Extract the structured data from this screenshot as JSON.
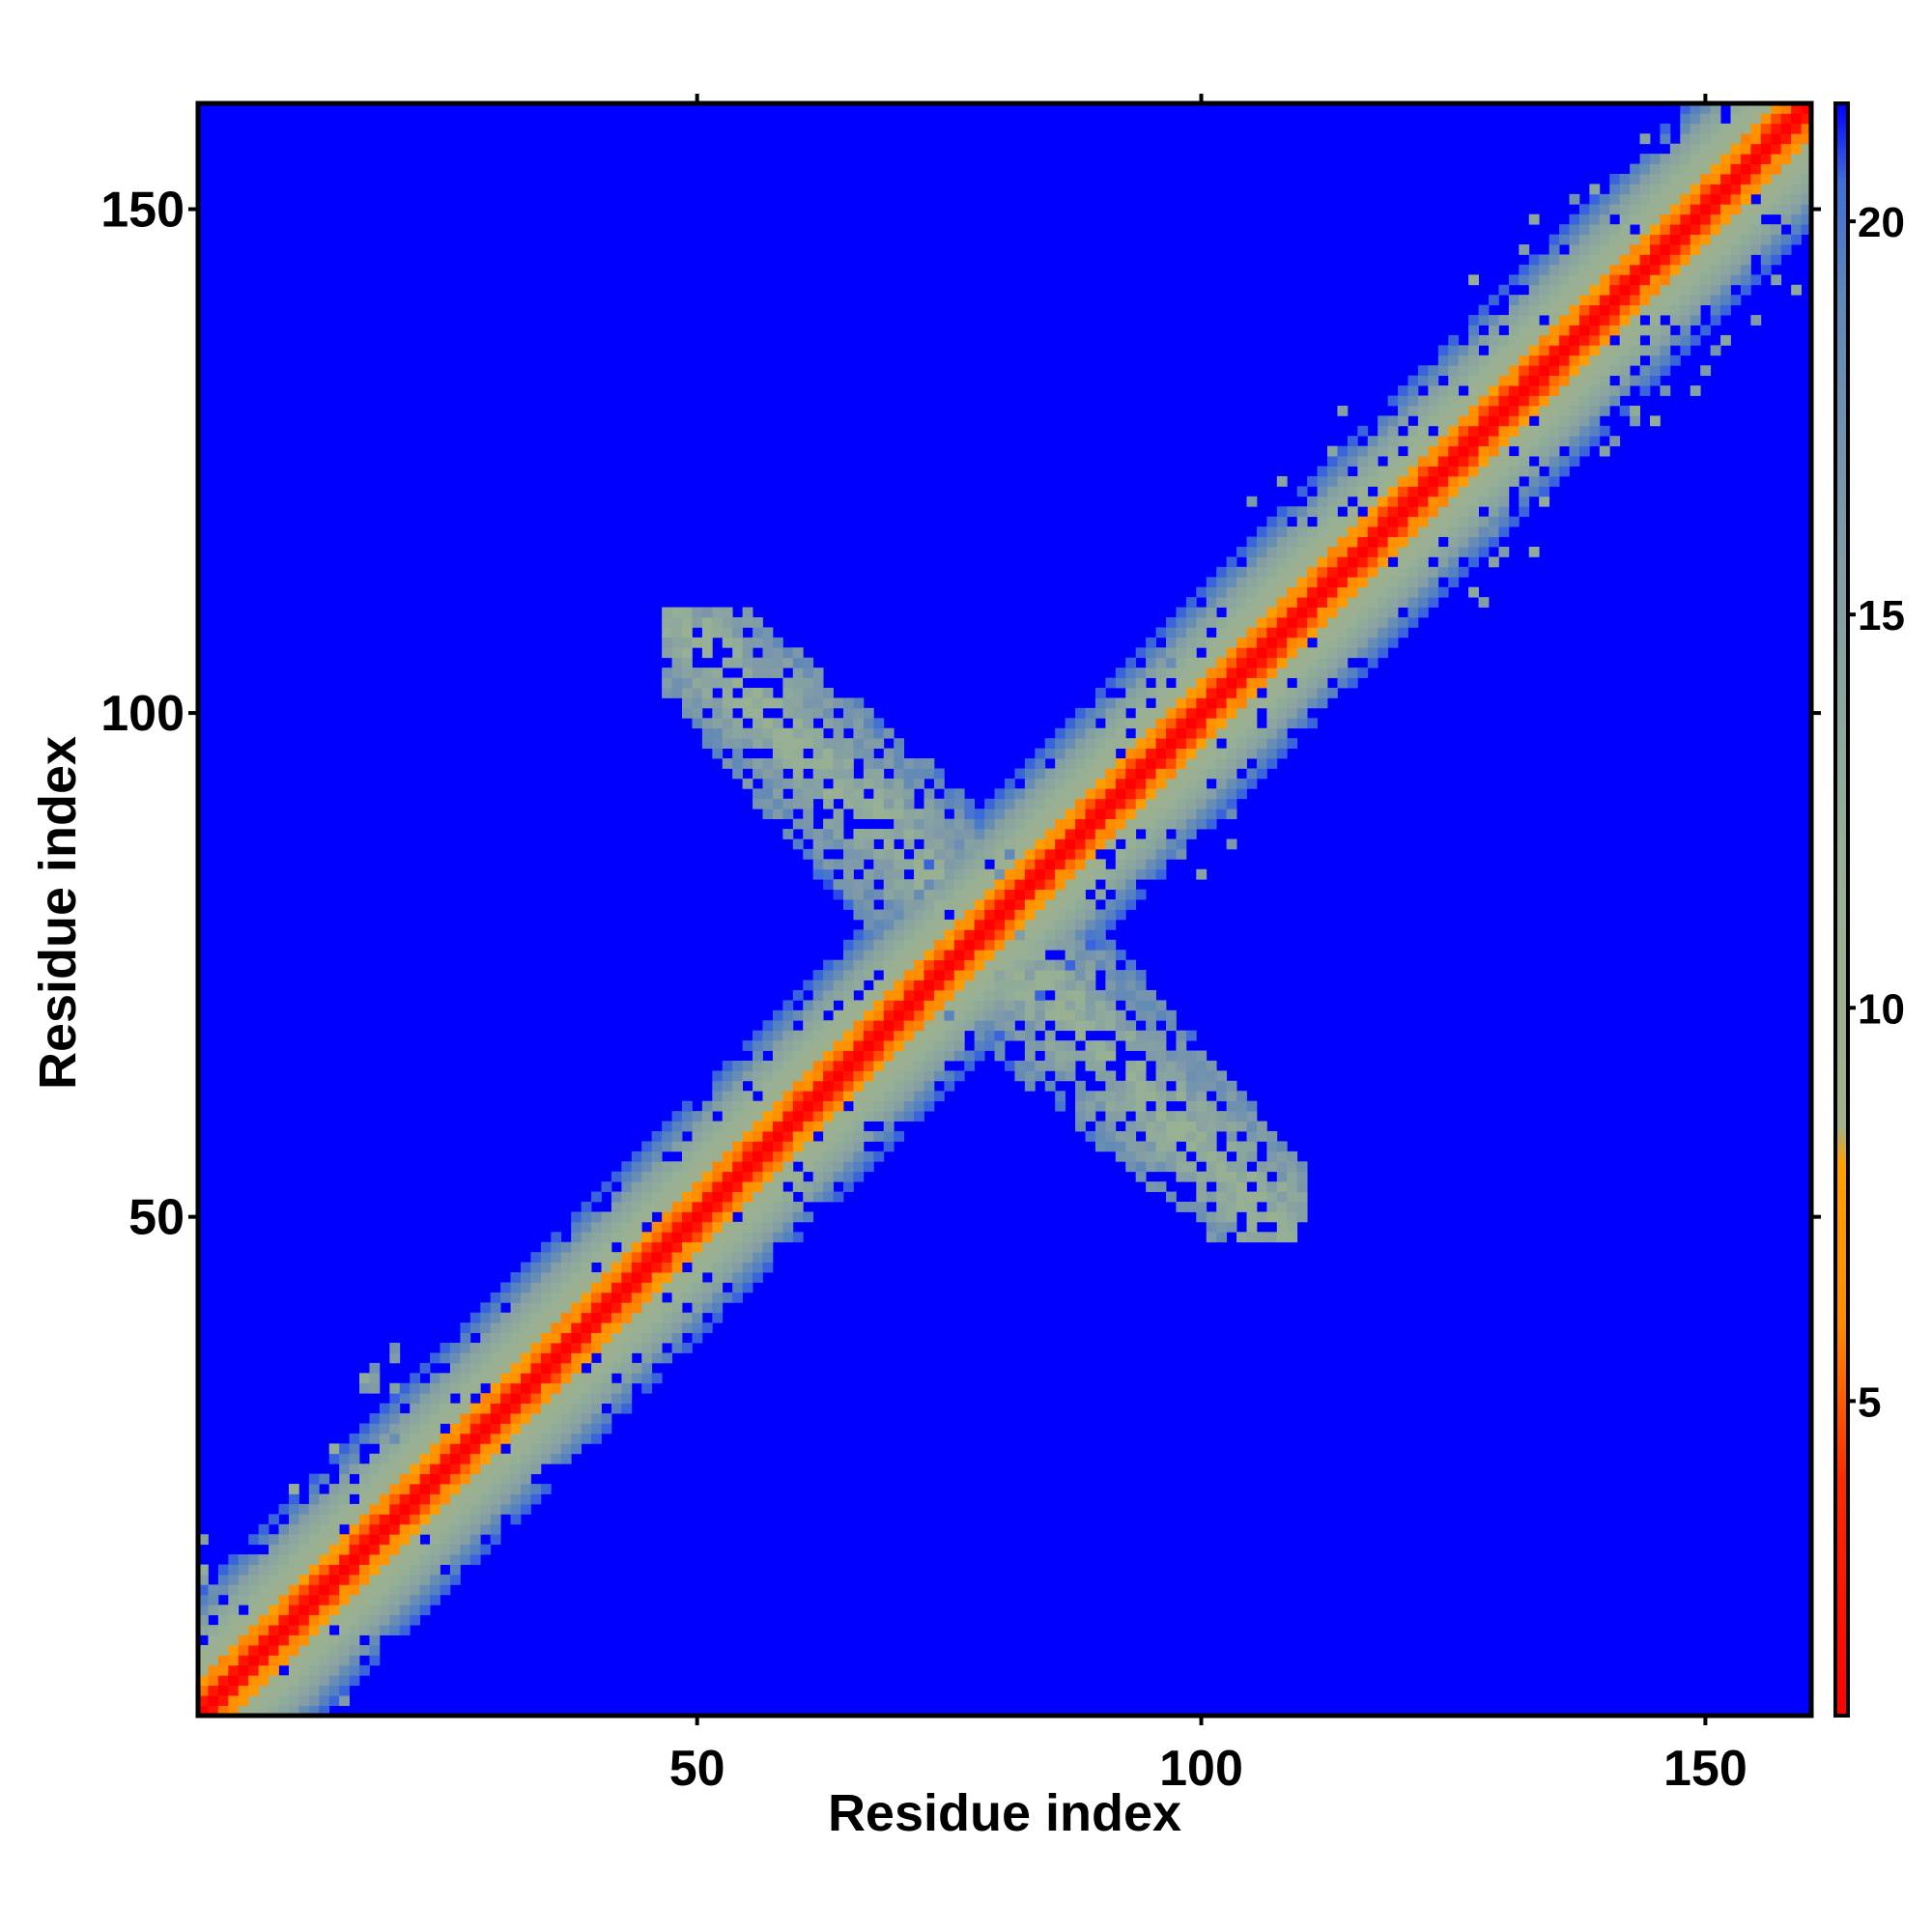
{
  "chart_data": {
    "type": "heatmap",
    "title": "",
    "xlabel": "Residue index",
    "ylabel": "Residue index",
    "x_range": [
      1,
      160
    ],
    "y_range": [
      1,
      160
    ],
    "x_ticks": [
      50,
      100,
      150
    ],
    "y_ticks": [
      50,
      100,
      150
    ],
    "colorbar": {
      "range": [
        1,
        21.5
      ],
      "ticks": [
        5,
        10,
        15,
        20
      ],
      "stops": [
        {
          "value": 1,
          "color": "#ff0000"
        },
        {
          "value": 4,
          "color": "#ff2a00"
        },
        {
          "value": 6,
          "color": "#ff8c00"
        },
        {
          "value": 8,
          "color": "#ffa000"
        },
        {
          "value": 8.5,
          "color": "#a0b08a"
        },
        {
          "value": 12,
          "color": "#96b096"
        },
        {
          "value": 16,
          "color": "#7f9aa8"
        },
        {
          "value": 19,
          "color": "#5f88b8"
        },
        {
          "value": 20.5,
          "color": "#3f6fd8"
        },
        {
          "value": 21.5,
          "color": "#0000ff"
        }
      ]
    },
    "background_value": 21.5,
    "features": [
      {
        "kind": "diagonal_band",
        "from": 1,
        "to": 160,
        "red_halfwidth": 1.5,
        "orange_halfwidth": 3.5,
        "green_halfwidth": 9,
        "outer_halfwidth": 12
      },
      {
        "kind": "antidiagonal_contact",
        "x_range": [
          47,
          110
        ],
        "y_range": [
          48,
          110
        ],
        "center": [
          78,
          79
        ],
        "halfwidth": 7
      }
    ],
    "grid": false,
    "legend": "colorbar-right"
  }
}
